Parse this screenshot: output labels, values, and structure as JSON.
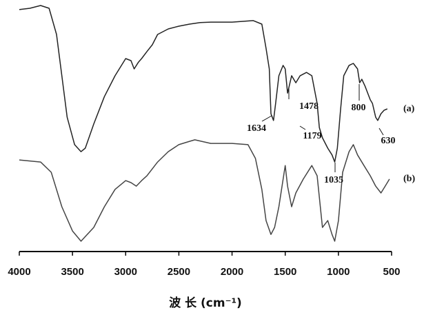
{
  "chart_data": {
    "type": "line",
    "x_label": "波 长 (cm⁻¹)",
    "xlim": [
      4000,
      500
    ],
    "ylim": [
      0,
      100
    ],
    "xticks": [
      4000,
      3500,
      3000,
      2500,
      2000,
      1500,
      1000,
      500
    ],
    "series": [
      {
        "name": "(a)",
        "color": "#222",
        "x": [
          4000,
          3900,
          3800,
          3720,
          3650,
          3600,
          3550,
          3480,
          3420,
          3380,
          3300,
          3200,
          3100,
          3000,
          2950,
          2920,
          2880,
          2850,
          2800,
          2750,
          2700,
          2600,
          2500,
          2400,
          2300,
          2200,
          2000,
          1800,
          1720,
          1680,
          1650,
          1634,
          1610,
          1590,
          1560,
          1520,
          1500,
          1478,
          1440,
          1400,
          1360,
          1300,
          1250,
          1200,
          1179,
          1150,
          1100,
          1060,
          1035,
          1010,
          980,
          950,
          900,
          860,
          820,
          800,
          780,
          750,
          700,
          680,
          650,
          630,
          600,
          570,
          540
        ],
        "values": [
          96.2,
          96.7,
          97.8,
          96.7,
          86.3,
          69.9,
          53.4,
          42.5,
          39.7,
          41.1,
          50.7,
          61.6,
          69.9,
          76.7,
          75.9,
          72.6,
          75.3,
          76.7,
          79.5,
          82.2,
          86.3,
          88.5,
          89.6,
          90.4,
          91.0,
          91.2,
          91.2,
          91.8,
          90.4,
          80.8,
          72.6,
          54.8,
          52.1,
          58.9,
          69.9,
          74.0,
          72.6,
          63.0,
          69.9,
          67.1,
          69.9,
          71.2,
          69.9,
          58.9,
          49.3,
          45.2,
          41.1,
          38.4,
          35.6,
          41.1,
          56.2,
          69.9,
          74.0,
          74.8,
          72.6,
          67.1,
          68.5,
          65.8,
          60.3,
          58.9,
          53.4,
          52.1,
          54.8,
          56.2,
          56.7
        ]
      },
      {
        "name": "(b)",
        "color": "#444",
        "x": [
          4000,
          3800,
          3700,
          3600,
          3500,
          3420,
          3300,
          3200,
          3100,
          3000,
          2950,
          2900,
          2850,
          2800,
          2700,
          2600,
          2500,
          2400,
          2350,
          2200,
          2000,
          1850,
          1780,
          1720,
          1680,
          1634,
          1600,
          1560,
          1500,
          1478,
          1440,
          1400,
          1330,
          1250,
          1200,
          1150,
          1100,
          1060,
          1035,
          1000,
          960,
          900,
          860,
          820,
          760,
          700,
          650,
          600,
          560,
          520
        ],
        "values": [
          36.4,
          35.6,
          31.5,
          17.8,
          8.2,
          4.1,
          9.6,
          17.8,
          24.7,
          28.2,
          27.4,
          26.0,
          28.2,
          30.1,
          35.6,
          39.7,
          42.5,
          43.8,
          44.4,
          43.0,
          43.0,
          42.5,
          37.0,
          24.7,
          12.3,
          6.8,
          9.6,
          17.8,
          34.2,
          26.0,
          17.8,
          23.3,
          28.8,
          34.2,
          30.1,
          9.6,
          12.3,
          6.8,
          4.1,
          12.3,
          31.5,
          39.7,
          42.5,
          38.4,
          34.2,
          30.1,
          26.0,
          23.3,
          26.0,
          28.8
        ]
      }
    ],
    "annotations": [
      {
        "text": "1634",
        "x": 1634
      },
      {
        "text": "1478",
        "x": 1478
      },
      {
        "text": "1179",
        "x": 1179
      },
      {
        "text": "1035",
        "x": 1035
      },
      {
        "text": "800",
        "x": 800
      },
      {
        "text": "630",
        "x": 630
      }
    ]
  }
}
